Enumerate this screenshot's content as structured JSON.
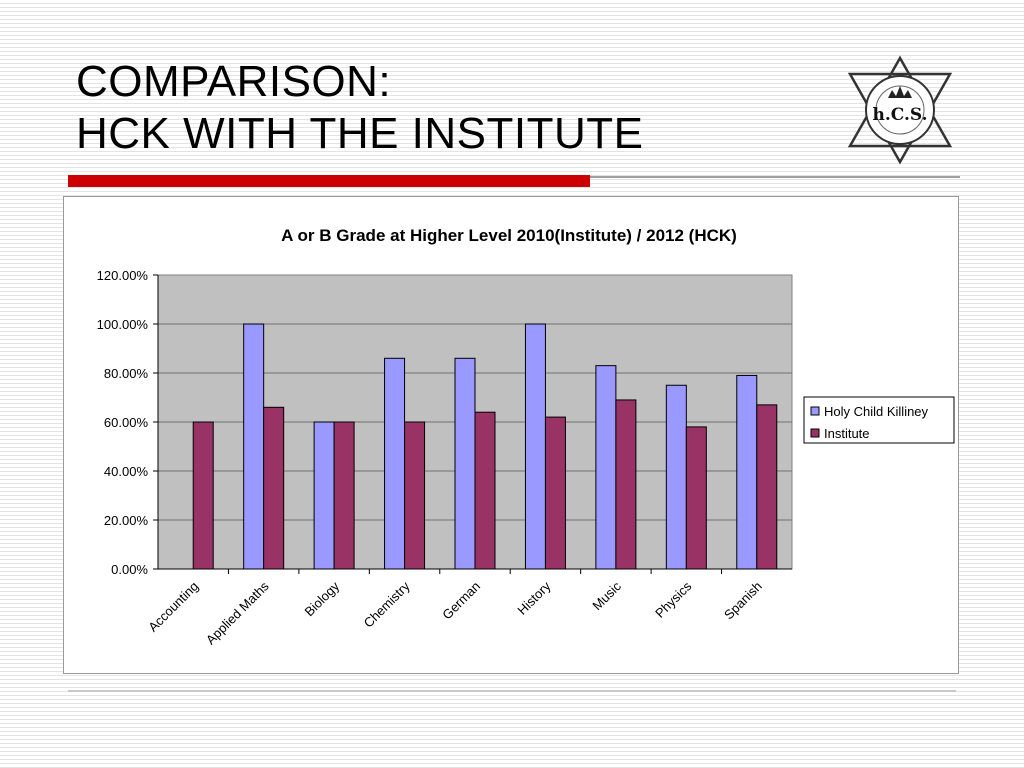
{
  "slide": {
    "title_line1": "COMPARISON:",
    "title_line2": "HCK WITH THE INSTITUTE",
    "logo_text": "h.C.S.",
    "accent_color": "#cc0000"
  },
  "chart_data": {
    "type": "bar",
    "title": "A or B Grade at Higher Level 2010(Institute) / 2012 (HCK)",
    "categories": [
      "Accounting",
      "Applied Maths",
      "Biology",
      "Chemistry",
      "German",
      "History",
      "Music",
      "Physics",
      "Spanish"
    ],
    "series": [
      {
        "name": "Holy Child Killiney",
        "color": "#9999ff",
        "values": [
          null,
          100,
          60,
          86,
          86,
          100,
          83,
          75,
          79
        ]
      },
      {
        "name": "Institute",
        "color": "#993366",
        "values": [
          60,
          66,
          60,
          60,
          64,
          62,
          69,
          58,
          67
        ]
      }
    ],
    "ylim": [
      0,
      120
    ],
    "yticks": [
      "0.00%",
      "20.00%",
      "40.00%",
      "60.00%",
      "80.00%",
      "100.00%",
      "120.00%"
    ],
    "grid": true,
    "plot_background": "#c0c0c0",
    "legend_position": "right"
  }
}
